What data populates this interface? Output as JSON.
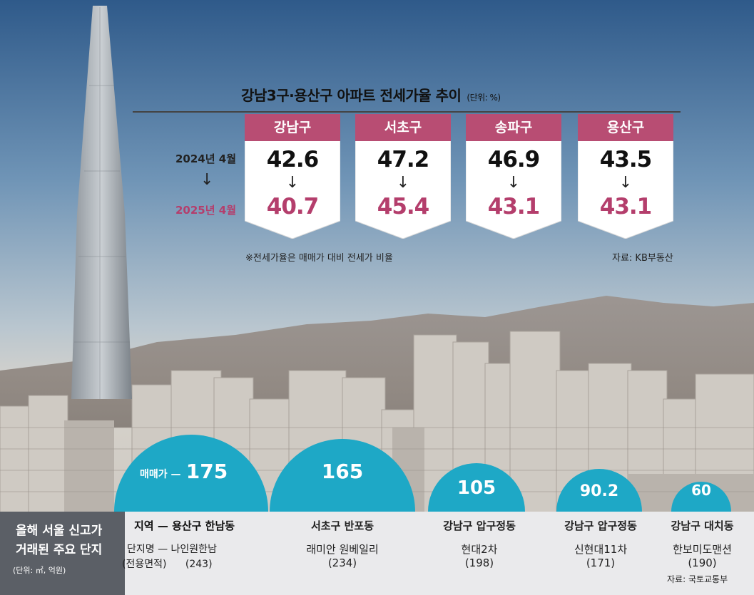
{
  "title": "강남3구·용산구 아파트 전세가율 추이",
  "unit": "(단위: %)",
  "year_from": "2024년 4월",
  "year_arrow": "↓",
  "year_to": "2025년 4월",
  "note": "※전세가율은 매매가 대비 전세가 비율",
  "source_top": "자료: KB부동산",
  "bottom_title_line1": "올해 서울 신고가",
  "bottom_title_line2": "거래된 주요 단지",
  "bottom_unit": "(단위: ㎡, 억원)",
  "region_label": "지역",
  "complex_label": "단지명",
  "area_label": "(전용면적)",
  "price_label": "매매가",
  "source_bottom": "자료: 국토교통부",
  "colors": {
    "card_header": "#b84d73",
    "accent": "#b43e6c",
    "bubble": "#1ea8c6"
  },
  "chart_data": [
    {
      "type": "bar",
      "title": "강남3구·용산구 아파트 전세가율 추이",
      "unit": "%",
      "categories": [
        "강남구",
        "서초구",
        "송파구",
        "용산구"
      ],
      "series": [
        {
          "name": "2024년 4월",
          "values": [
            42.6,
            47.2,
            46.9,
            43.5
          ],
          "labels": [
            "42.6",
            "47.2",
            "46.9",
            "43.5"
          ]
        },
        {
          "name": "2025년 4월",
          "values": [
            40.7,
            45.4,
            43.1,
            43.1
          ],
          "labels": [
            "40.7",
            "45.4",
            "43.1",
            "43.1"
          ]
        }
      ]
    },
    {
      "type": "bubble",
      "title": "올해 서울 신고가 거래된 주요 단지",
      "unit": "억원",
      "items": [
        {
          "region": "용산구 한남동",
          "complex": "나인원한남",
          "area": "(243)",
          "price": 175,
          "price_label": "175"
        },
        {
          "region": "서초구 반포동",
          "complex": "래미안 원베일리",
          "area": "(234)",
          "price": 165,
          "price_label": "165"
        },
        {
          "region": "강남구 압구정동",
          "complex": "현대2차",
          "area": "(198)",
          "price": 105,
          "price_label": "105"
        },
        {
          "region": "강남구 압구정동",
          "complex": "신현대11차",
          "area": "(171)",
          "price": 90.2,
          "price_label": "90.2"
        },
        {
          "region": "강남구 대치동",
          "complex": "한보미도맨션",
          "area": "(190)",
          "price": 60,
          "price_label": "60"
        }
      ]
    }
  ]
}
